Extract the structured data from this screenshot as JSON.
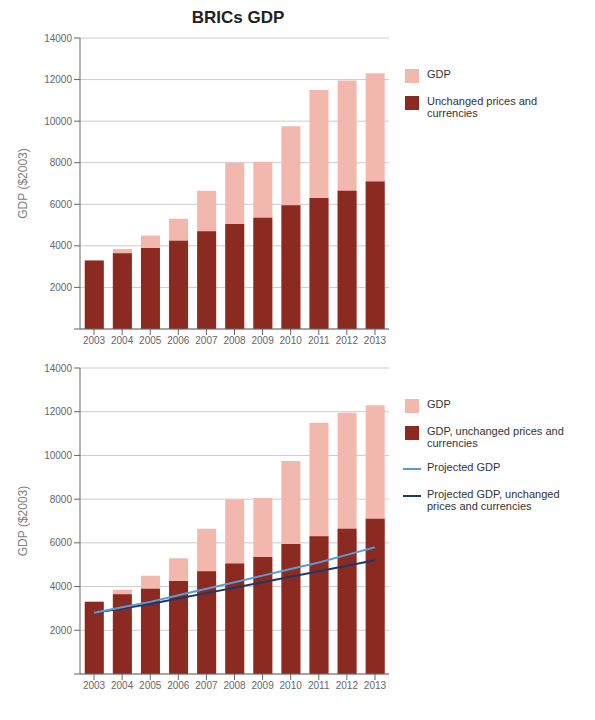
{
  "chart_data": [
    {
      "type": "bar",
      "title": "BRICs GDP",
      "y_label": "GDP ($2003)",
      "categories": [
        2003,
        2004,
        2005,
        2006,
        2007,
        2008,
        2009,
        2010,
        2011,
        2012,
        2013
      ],
      "series": [
        {
          "name": "GDP",
          "type": "bar",
          "color": "#f2b8ae",
          "values": [
            3300,
            3850,
            4500,
            5300,
            6650,
            8000,
            8050,
            9750,
            11500,
            11950,
            12300
          ]
        },
        {
          "name": "Unchanged prices and\ncurrencies",
          "type": "bar",
          "color": "#8b2a20",
          "values": [
            3300,
            3650,
            3900,
            4250,
            4700,
            5050,
            5350,
            5950,
            6300,
            6650,
            7100
          ]
        }
      ],
      "ylim": [
        0,
        14000
      ],
      "yticks": [
        {
          "value": 0,
          "label": null
        },
        2000,
        4000,
        6000,
        8000,
        10000,
        12000,
        14000
      ],
      "grid": true,
      "legend": "right"
    },
    {
      "type": "bar",
      "y_label": "GDP ($2003)",
      "categories": [
        2003,
        2004,
        2005,
        2006,
        2007,
        2008,
        2009,
        2010,
        2011,
        2012,
        2013
      ],
      "series": [
        {
          "name": "GDP",
          "type": "bar",
          "color": "#f2b8ae",
          "values": [
            3300,
            3850,
            4500,
            5300,
            6650,
            8000,
            8050,
            9750,
            11500,
            11950,
            12300
          ]
        },
        {
          "name": "GDP, unchanged prices and\ncurrencies",
          "type": "bar",
          "color": "#8b2a20",
          "values": [
            3300,
            3650,
            3900,
            4250,
            4700,
            5050,
            5350,
            5950,
            6300,
            6650,
            7100
          ]
        },
        {
          "name": "Projected GDP, unchanged\nprices and currencies",
          "type": "line",
          "color": "#1f3864",
          "values": [
            2800,
            3000,
            3200,
            3450,
            3700,
            3950,
            4200,
            4450,
            4700,
            4950,
            5200
          ]
        },
        {
          "name": "Projected GDP",
          "type": "line",
          "color": "#5b9bd5",
          "values": [
            2800,
            3050,
            3300,
            3600,
            3900,
            4200,
            4500,
            4800,
            5100,
            5450,
            5800
          ]
        }
      ],
      "ylim": [
        0,
        14000
      ],
      "yticks": [
        {
          "value": 0,
          "label": null
        },
        2000,
        4000,
        6000,
        8000,
        10000,
        12000,
        14000
      ],
      "grid": true,
      "legend": "right"
    }
  ]
}
